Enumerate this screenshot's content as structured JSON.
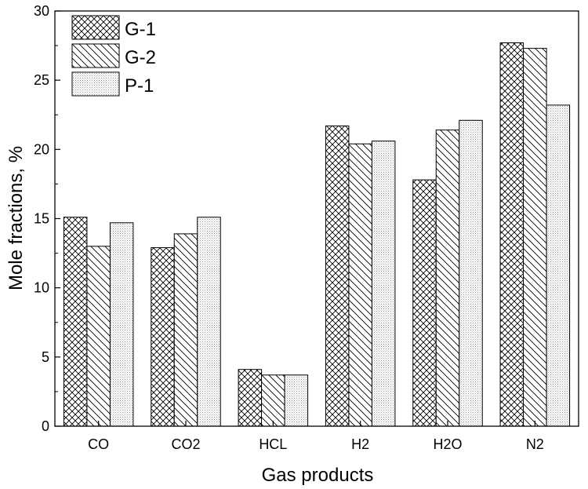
{
  "chart_data": {
    "type": "bar",
    "title": "",
    "xlabel": "Gas products",
    "ylabel": "Mole fractions, %",
    "ylim": [
      0,
      30
    ],
    "yticks": [
      0,
      5,
      10,
      15,
      20,
      25,
      30
    ],
    "categories": [
      "CO",
      "CO2",
      "HCL",
      "H2",
      "H2O",
      "N2"
    ],
    "series": [
      {
        "name": "G-1",
        "values": [
          15.1,
          12.9,
          4.1,
          21.7,
          17.8,
          27.7
        ],
        "pattern": "crosshatch"
      },
      {
        "name": "G-2",
        "values": [
          13.0,
          13.9,
          3.7,
          20.4,
          21.4,
          27.3
        ],
        "pattern": "diagonal-hatch"
      },
      {
        "name": "P-1",
        "values": [
          14.7,
          15.1,
          3.7,
          20.6,
          22.1,
          23.2
        ],
        "pattern": "dotted"
      }
    ],
    "legend": "top-left",
    "grid": false
  }
}
